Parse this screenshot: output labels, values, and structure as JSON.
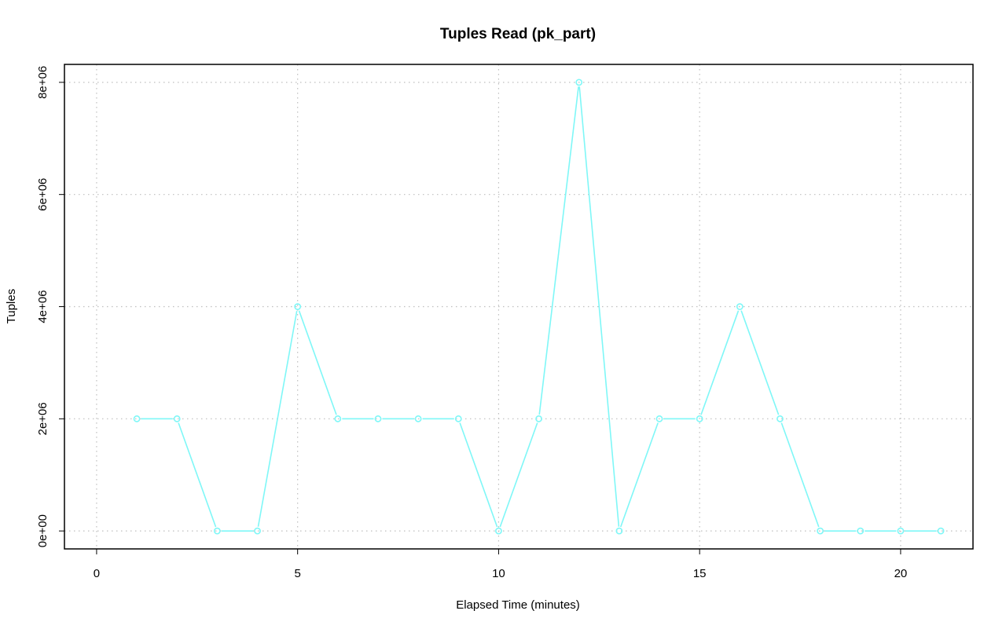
{
  "colors": {
    "series": "#7ff7f7",
    "grid": "#bebebe",
    "frame": "#000000"
  },
  "chart_data": {
    "type": "line",
    "title": "Tuples Read (pk_part)",
    "xlabel": "Elapsed Time (minutes)",
    "ylabel": "Tuples",
    "xlim": [
      -0.8,
      21.8
    ],
    "ylim": [
      -320000,
      8320000
    ],
    "x_ticks": [
      0,
      5,
      10,
      15,
      20
    ],
    "x_tick_labels": [
      "0",
      "5",
      "10",
      "15",
      "20"
    ],
    "y_ticks": [
      0,
      2000000,
      4000000,
      6000000,
      8000000
    ],
    "y_tick_labels": [
      "0e+00",
      "2e+06",
      "4e+06",
      "6e+06",
      "8e+06"
    ],
    "grid": true,
    "series": [
      {
        "x": [
          1,
          2,
          3,
          4,
          5,
          6,
          7,
          8,
          9,
          10,
          11,
          12,
          13,
          14,
          15,
          16,
          17,
          18,
          19,
          20,
          21
        ],
        "y": [
          2000000,
          2000000,
          0,
          0,
          4000000,
          2000000,
          2000000,
          2000000,
          2000000,
          0,
          2000000,
          8000000,
          0,
          2000000,
          2000000,
          4000000,
          2000000,
          0,
          0,
          0,
          0
        ]
      }
    ]
  }
}
